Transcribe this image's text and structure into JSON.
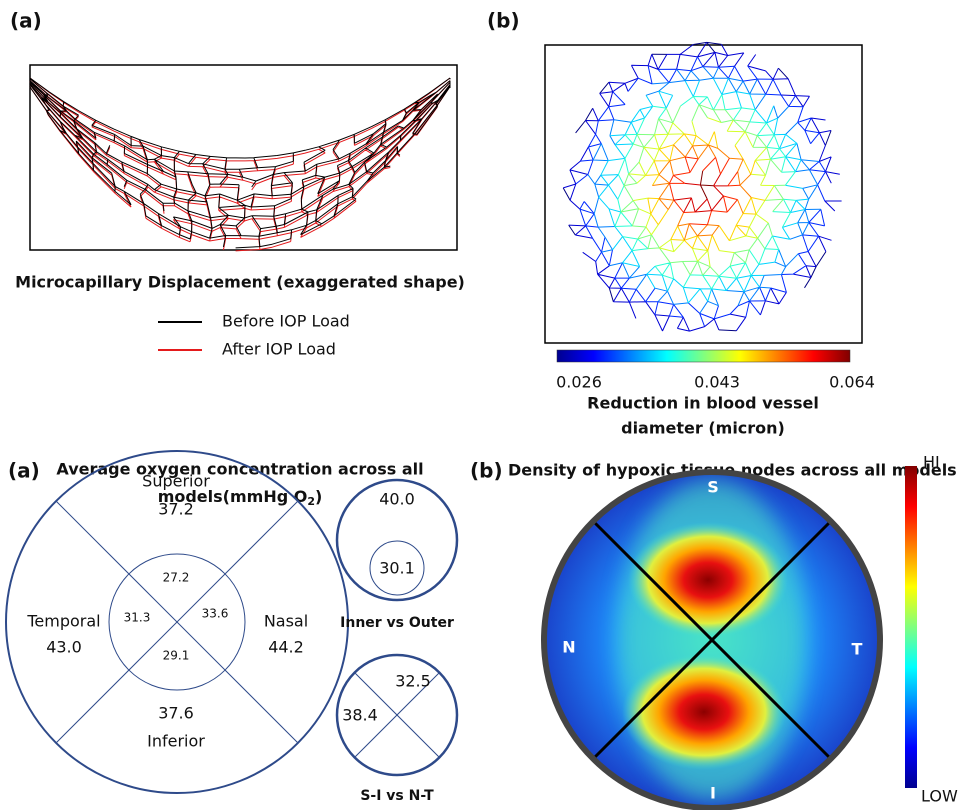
{
  "top_left": {
    "label": "(a)",
    "caption": "Microcapillary Displacement (exaggerated shape)",
    "legend": [
      {
        "name": "Before IOP Load",
        "color": "#000000"
      },
      {
        "name": "After IOP Load",
        "color": "#e41a1c"
      }
    ]
  },
  "top_right": {
    "label": "(b)",
    "colorbar_ticks": [
      "0.026",
      "0.043",
      "0.064"
    ],
    "colorbar_title": [
      "Reduction in blood vessel",
      "diameter (micron)"
    ]
  },
  "bottom_left": {
    "label": "(a)",
    "title_line1": "Average oxygen concentration across all",
    "title_line2": [
      "models(mmHg O",
      "2",
      ")"
    ],
    "outer": {
      "superior": [
        "Superior",
        "37.2"
      ],
      "temporal": [
        "Temporal",
        "43.0"
      ],
      "nasal": [
        "Nasal",
        "44.2"
      ],
      "inferior": [
        "Inferior",
        "37.6"
      ]
    },
    "inner": {
      "superior": "27.2",
      "temporal": "31.3",
      "nasal": "33.6",
      "inferior": "29.1"
    },
    "inner_vs_outer": {
      "outer": "40.0",
      "inner": "30.1",
      "caption": "Inner vs Outer"
    },
    "si_vs_nt": {
      "top": "32.5",
      "left": "38.4",
      "caption": "S-I vs N-T"
    }
  },
  "bottom_right": {
    "label": "(b)",
    "title": "Density of hypoxic tissue nodes across all models",
    "directions": {
      "s": "S",
      "n": "N",
      "t": "T",
      "i": "I"
    },
    "colorbar_high": "HI",
    "colorbar_low": "LOW"
  }
}
